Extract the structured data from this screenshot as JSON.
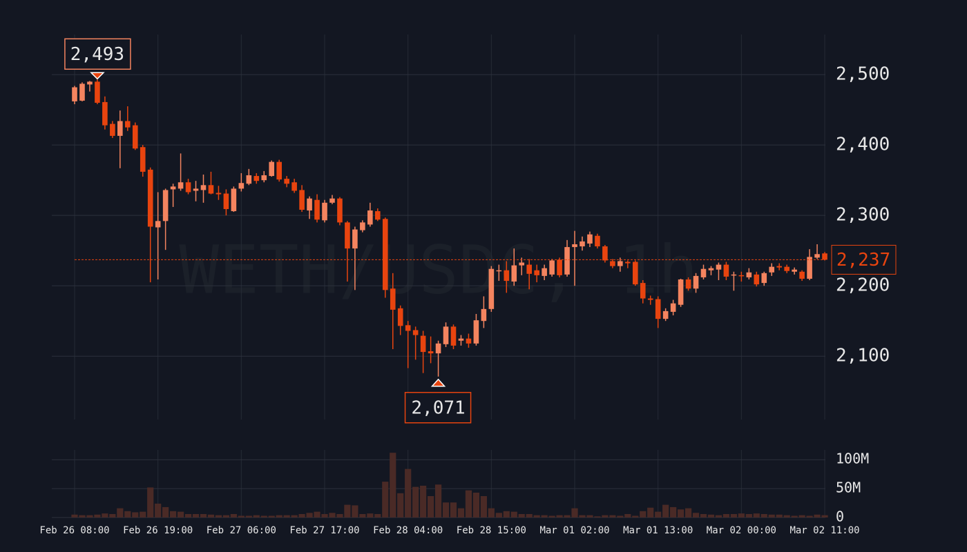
{
  "chart_data": {
    "type": "candlestick",
    "watermark": "WETH/USDC, 1h",
    "categories": [
      "Feb 26 08:00",
      null,
      null,
      null,
      null,
      null,
      null,
      null,
      null,
      null,
      null,
      "Feb 26 19:00",
      null,
      null,
      null,
      null,
      null,
      null,
      null,
      null,
      null,
      null,
      "Feb 27 06:00",
      null,
      null,
      null,
      null,
      null,
      null,
      null,
      null,
      null,
      null,
      "Feb 27 17:00",
      null,
      null,
      null,
      null,
      null,
      null,
      null,
      null,
      null,
      null,
      "Feb 28 04:00",
      null,
      null,
      null,
      null,
      null,
      null,
      null,
      null,
      null,
      null,
      "Feb 28 15:00",
      null,
      null,
      null,
      null,
      null,
      null,
      null,
      null,
      null,
      null,
      "Mar 01 02:00",
      null,
      null,
      null,
      null,
      null,
      null,
      null,
      null,
      null,
      null,
      "Mar 01 13:00",
      null,
      null,
      null,
      null,
      null,
      null,
      null,
      null,
      null,
      null,
      "Mar 02 00:00",
      null,
      null,
      null,
      null,
      null,
      null,
      null,
      null,
      null,
      null,
      "Mar 02 11:00"
    ],
    "open": [
      2462,
      2463,
      2486,
      2490,
      2461,
      2430,
      2413,
      2434,
      2428,
      2397,
      2365,
      2283,
      2292,
      2337,
      2338,
      2347,
      2335,
      2336,
      2343,
      2332,
      2331,
      2306,
      2338,
      2345,
      2356,
      2350,
      2356,
      2376,
      2352,
      2347,
      2336,
      2307,
      2322,
      2293,
      2318,
      2324,
      2290,
      2253,
      2279,
      2287,
      2306,
      2295,
      2196,
      2168,
      2144,
      2137,
      2129,
      2107,
      2104,
      2117,
      2142,
      2122,
      2125,
      2118,
      2150,
      2167,
      2221,
      2222,
      2206,
      2229,
      2230,
      2222,
      2214,
      2216,
      2237,
      2216,
      2255,
      2256,
      2260,
      2271,
      2256,
      2235,
      2228,
      2234,
      2234,
      2204,
      2182,
      2181,
      2153,
      2163,
      2173,
      2209,
      2196,
      2212,
      2222,
      2223,
      2230,
      2215,
      2215,
      2212,
      2216,
      2204,
      2219,
      2228,
      2227,
      2220,
      2220,
      2210,
      2240,
      2246
    ],
    "high": [
      2484,
      2489,
      2491,
      2493,
      2469,
      2434,
      2449,
      2455,
      2432,
      2400,
      2368,
      2333,
      2338,
      2345,
      2388,
      2352,
      2349,
      2358,
      2362,
      2342,
      2337,
      2341,
      2360,
      2366,
      2360,
      2363,
      2378,
      2379,
      2356,
      2352,
      2343,
      2327,
      2330,
      2322,
      2329,
      2326,
      2292,
      2284,
      2293,
      2318,
      2310,
      2297,
      2218,
      2172,
      2150,
      2142,
      2136,
      2128,
      2122,
      2148,
      2145,
      2130,
      2132,
      2160,
      2185,
      2228,
      2230,
      2235,
      2253,
      2240,
      2238,
      2230,
      2230,
      2238,
      2240,
      2265,
      2278,
      2270,
      2277,
      2274,
      2258,
      2238,
      2240,
      2236,
      2236,
      2208,
      2186,
      2185,
      2168,
      2180,
      2210,
      2212,
      2218,
      2230,
      2228,
      2233,
      2234,
      2220,
      2220,
      2225,
      2220,
      2220,
      2232,
      2232,
      2230,
      2226,
      2222,
      2252,
      2259,
      2248
    ],
    "low": [
      2458,
      2462,
      2476,
      2458,
      2422,
      2410,
      2367,
      2420,
      2393,
      2355,
      2205,
      2209,
      2251,
      2312,
      2335,
      2330,
      2320,
      2318,
      2330,
      2322,
      2300,
      2305,
      2334,
      2343,
      2345,
      2347,
      2355,
      2348,
      2340,
      2332,
      2305,
      2295,
      2290,
      2290,
      2316,
      2286,
      2206,
      2194,
      2276,
      2284,
      2292,
      2183,
      2110,
      2130,
      2083,
      2095,
      2076,
      2090,
      2071,
      2113,
      2110,
      2115,
      2112,
      2115,
      2140,
      2163,
      2207,
      2190,
      2200,
      2215,
      2195,
      2205,
      2208,
      2213,
      2212,
      2213,
      2200,
      2250,
      2255,
      2253,
      2233,
      2225,
      2220,
      2225,
      2200,
      2175,
      2173,
      2140,
      2150,
      2158,
      2170,
      2193,
      2190,
      2209,
      2215,
      2208,
      2208,
      2193,
      2206,
      2209,
      2199,
      2200,
      2214,
      2222,
      2218,
      2216,
      2207,
      2208,
      2238,
      2236
    ],
    "close": [
      2482,
      2487,
      2490,
      2460,
      2428,
      2413,
      2434,
      2425,
      2395,
      2362,
      2284,
      2292,
      2336,
      2341,
      2347,
      2333,
      2338,
      2343,
      2331,
      2330,
      2309,
      2338,
      2346,
      2357,
      2349,
      2357,
      2376,
      2351,
      2345,
      2335,
      2308,
      2324,
      2294,
      2318,
      2324,
      2290,
      2253,
      2280,
      2290,
      2307,
      2294,
      2194,
      2166,
      2143,
      2136,
      2130,
      2106,
      2104,
      2118,
      2142,
      2115,
      2125,
      2118,
      2151,
      2167,
      2224,
      2222,
      2207,
      2229,
      2233,
      2217,
      2215,
      2225,
      2236,
      2215,
      2255,
      2259,
      2263,
      2273,
      2256,
      2236,
      2228,
      2235,
      2232,
      2202,
      2182,
      2180,
      2153,
      2164,
      2175,
      2209,
      2196,
      2214,
      2224,
      2225,
      2230,
      2213,
      2216,
      2214,
      2219,
      2202,
      2218,
      2227,
      2226,
      2221,
      2223,
      2210,
      2241,
      2245,
      2237
    ],
    "volume": [
      5,
      4,
      4,
      5,
      7,
      6,
      16,
      11,
      9,
      10,
      52,
      24,
      18,
      11,
      10,
      6,
      6,
      6,
      5,
      4,
      4,
      6,
      3,
      3,
      4,
      3,
      3,
      4,
      4,
      4,
      6,
      8,
      10,
      6,
      8,
      6,
      22,
      21,
      6,
      7,
      6,
      62,
      112,
      42,
      84,
      53,
      55,
      37,
      57,
      26,
      26,
      16,
      47,
      43,
      37,
      16,
      8,
      11,
      10,
      6,
      6,
      4,
      4,
      3,
      4,
      4,
      16,
      4,
      4,
      2,
      4,
      4,
      3,
      6,
      3,
      11,
      17,
      10,
      22,
      18,
      14,
      16,
      8,
      6,
      5,
      4,
      6,
      6,
      7,
      6,
      7,
      6,
      5,
      5,
      4,
      3,
      4,
      3,
      5,
      4
    ],
    "up_color": "#f4845f",
    "down_color": "#e8440f",
    "volume_color": "#4a2a26",
    "ylim": [
      2010,
      2557
    ],
    "yticks": [
      {
        "value": 2100,
        "label": "2,100"
      },
      {
        "value": 2200,
        "label": "2,200"
      },
      {
        "value": 2300,
        "label": "2,300"
      },
      {
        "value": 2400,
        "label": "2,400"
      },
      {
        "value": 2500,
        "label": "2,500"
      }
    ],
    "volume_ylim": [
      0,
      117
    ],
    "volume_yticks": [
      0,
      {
        "value": 50,
        "label": "50M"
      },
      {
        "value": 100,
        "label": "100M"
      }
    ],
    "high_label": {
      "value": 2493,
      "label": "2,493"
    },
    "low_label": {
      "value": 2071,
      "label": "2,071"
    },
    "last_price": {
      "value": 2237,
      "label": "2,237"
    },
    "grid": true
  }
}
